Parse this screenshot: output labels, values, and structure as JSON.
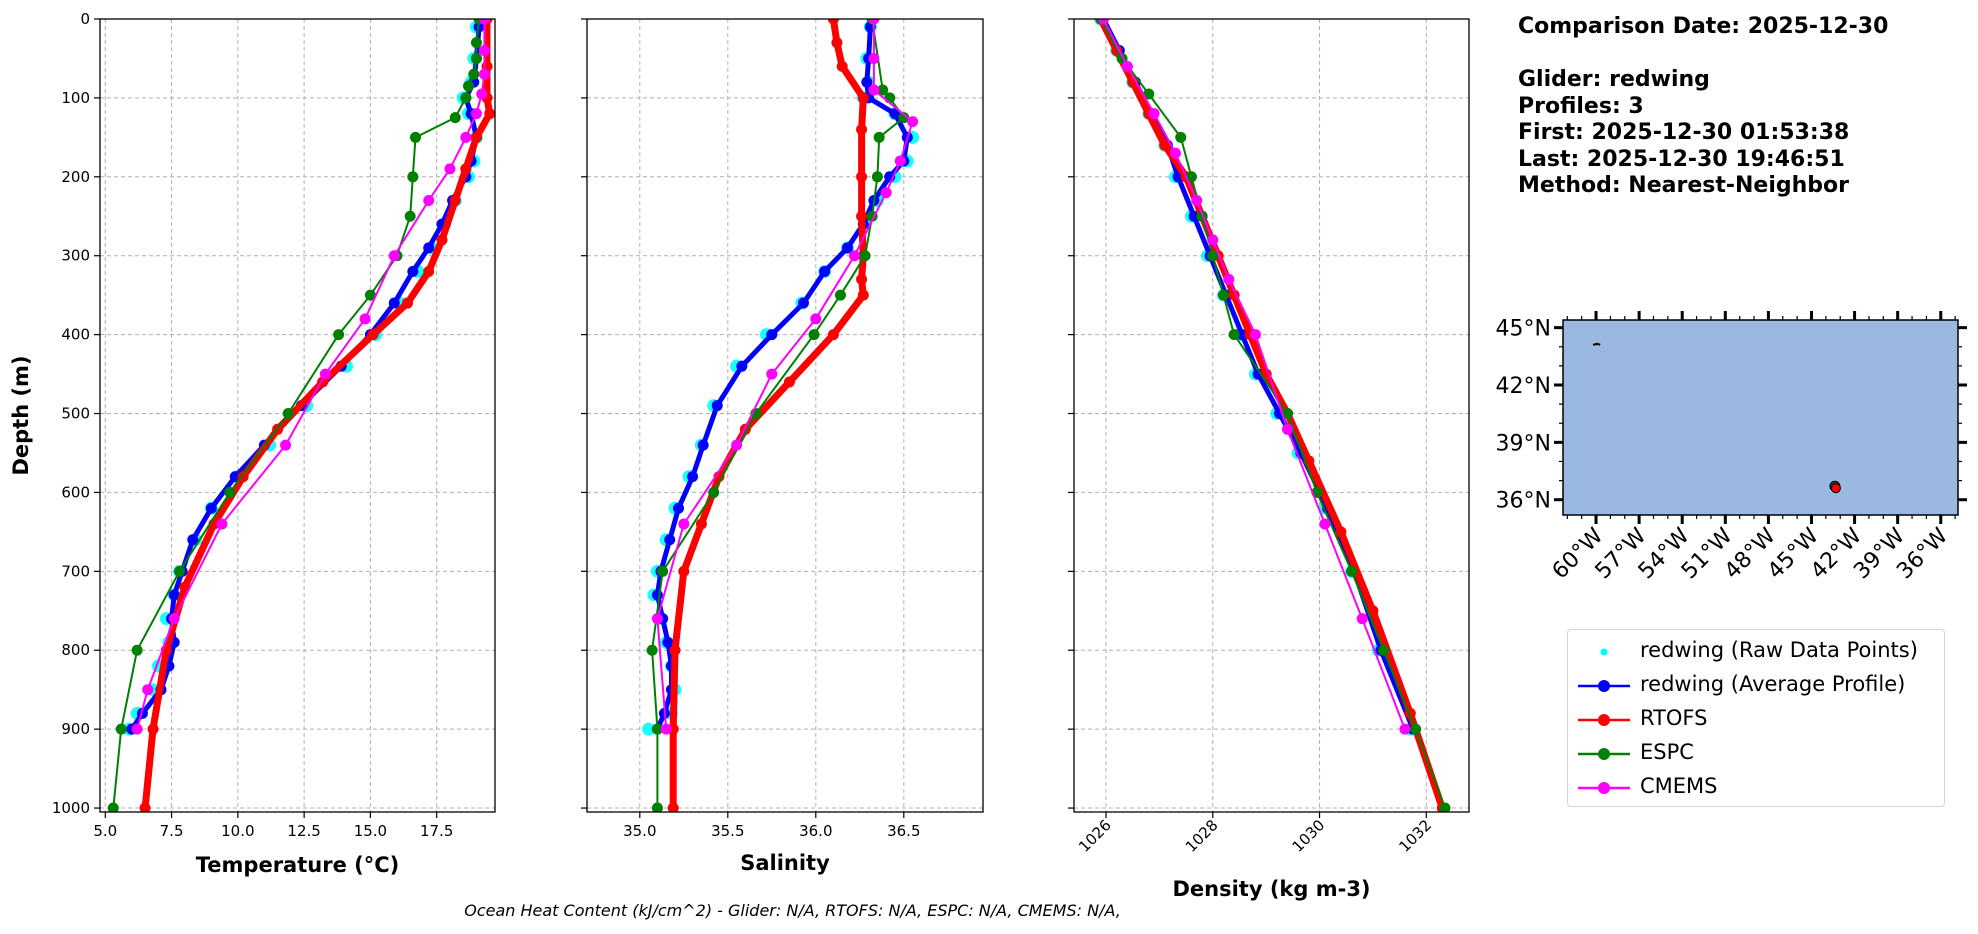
{
  "chart_data": [
    {
      "type": "line",
      "xlabel": "Temperature (°C)",
      "ylabel": "Depth (m)",
      "xlim": [
        4.8,
        19.7
      ],
      "ylim": [
        1005,
        0
      ],
      "xticks": [
        "5.0",
        "7.5",
        "10.0",
        "12.5",
        "15.0",
        "17.5"
      ],
      "yticks": [
        "0",
        "100",
        "200",
        "300",
        "400",
        "500",
        "600",
        "700",
        "800",
        "900",
        "1000"
      ],
      "grid": true,
      "series": [
        {
          "name": "redwing (Raw Data Points)",
          "color": "#00ffff",
          "style": "points",
          "x": [
            19.0,
            18.9,
            18.8,
            18.5,
            18.7,
            19.0,
            18.9,
            18.7,
            18.2,
            17.8,
            17.3,
            16.8,
            16.1,
            15.2,
            14.1,
            12.6,
            11.2,
            10.0,
            9.0,
            8.4,
            7.8,
            7.6,
            7.3,
            7.4,
            7.0,
            6.8,
            6.2,
            5.9
          ],
          "y": [
            10,
            50,
            80,
            100,
            120,
            150,
            180,
            200,
            230,
            260,
            290,
            320,
            360,
            400,
            440,
            490,
            540,
            580,
            620,
            660,
            700,
            730,
            760,
            790,
            820,
            850,
            880,
            900
          ]
        },
        {
          "name": "redwing (Average Profile)",
          "color": "#0000ff",
          "style": "line-markers",
          "x": [
            19.1,
            19.0,
            18.9,
            18.6,
            18.8,
            19.0,
            18.8,
            18.6,
            18.1,
            17.7,
            17.2,
            16.6,
            15.9,
            15.0,
            13.9,
            12.4,
            11.0,
            9.9,
            9.0,
            8.3,
            7.9,
            7.6,
            7.5,
            7.6,
            7.4,
            7.1,
            6.4,
            6.0
          ],
          "y": [
            10,
            50,
            80,
            100,
            120,
            150,
            180,
            200,
            230,
            260,
            290,
            320,
            360,
            400,
            440,
            490,
            540,
            580,
            620,
            660,
            700,
            730,
            760,
            790,
            820,
            850,
            880,
            900
          ]
        },
        {
          "name": "RTOFS",
          "color": "#ff0000",
          "style": "line-markers",
          "x": [
            19.4,
            19.4,
            19.4,
            19.5,
            19.0,
            18.6,
            18.2,
            17.7,
            17.2,
            16.4,
            15.1,
            13.2,
            11.5,
            10.2,
            9.1,
            8.0,
            7.3,
            6.8,
            6.5
          ],
          "y": [
            0,
            60,
            100,
            120,
            150,
            190,
            230,
            280,
            320,
            360,
            400,
            460,
            520,
            580,
            640,
            720,
            800,
            900,
            1000
          ]
        },
        {
          "name": "ESPC",
          "color": "#008000",
          "style": "line-markers",
          "x": [
            19.1,
            19.0,
            19.0,
            18.9,
            18.7,
            18.6,
            18.2,
            16.7,
            16.6,
            16.5,
            16.0,
            15.0,
            13.8,
            11.9,
            9.7,
            7.8,
            6.2,
            5.6,
            5.3
          ],
          "y": [
            0,
            30,
            50,
            70,
            85,
            100,
            125,
            150,
            200,
            250,
            300,
            350,
            400,
            500,
            600,
            700,
            800,
            900,
            1000
          ]
        },
        {
          "name": "CMEMS",
          "color": "#ff00ff",
          "style": "line-markers",
          "x": [
            19.3,
            19.3,
            19.3,
            19.2,
            19.0,
            18.6,
            18.0,
            17.2,
            15.9,
            14.8,
            13.3,
            11.8,
            9.4,
            7.6,
            6.6,
            6.2
          ],
          "y": [
            0,
            40,
            70,
            95,
            120,
            150,
            190,
            230,
            300,
            380,
            450,
            540,
            640,
            760,
            850,
            900
          ]
        }
      ]
    },
    {
      "type": "line",
      "xlabel": "Salinity",
      "ylabel": "",
      "xlim": [
        34.7,
        36.95
      ],
      "ylim": [
        1005,
        0
      ],
      "xticks": [
        "35.0",
        "35.5",
        "36.0",
        "36.5"
      ],
      "grid": true,
      "series": [
        {
          "name": "redwing (Raw Data Points)",
          "color": "#00ffff",
          "style": "points",
          "x": [
            36.31,
            36.29,
            36.3,
            36.27,
            36.45,
            36.55,
            36.52,
            36.45,
            36.35,
            36.28,
            36.18,
            36.05,
            35.92,
            35.72,
            35.55,
            35.42,
            35.35,
            35.28,
            35.2,
            35.15,
            35.1,
            35.08,
            35.12,
            35.15,
            35.18,
            35.2,
            35.18,
            35.05
          ],
          "y": [
            10,
            50,
            80,
            100,
            120,
            150,
            180,
            200,
            230,
            260,
            290,
            320,
            360,
            400,
            440,
            490,
            540,
            580,
            620,
            660,
            700,
            730,
            760,
            790,
            820,
            850,
            880,
            900
          ]
        },
        {
          "name": "redwing (Average Profile)",
          "color": "#0000ff",
          "style": "line-markers",
          "x": [
            36.31,
            36.3,
            36.29,
            36.3,
            36.45,
            36.52,
            36.5,
            36.42,
            36.33,
            36.27,
            36.18,
            36.05,
            35.93,
            35.75,
            35.58,
            35.44,
            35.36,
            35.3,
            35.22,
            35.17,
            35.12,
            35.1,
            35.13,
            35.16,
            35.18,
            35.18,
            35.14,
            35.1
          ],
          "y": [
            10,
            50,
            80,
            100,
            120,
            150,
            180,
            200,
            230,
            260,
            290,
            320,
            360,
            400,
            440,
            490,
            540,
            580,
            620,
            660,
            700,
            730,
            760,
            790,
            820,
            850,
            880,
            900
          ]
        },
        {
          "name": "RTOFS",
          "color": "#ff0000",
          "style": "line-markers",
          "x": [
            36.1,
            36.12,
            36.15,
            36.27,
            36.26,
            36.26,
            36.26,
            36.27,
            36.26,
            36.27,
            36.1,
            35.85,
            35.6,
            35.45,
            35.35,
            35.25,
            35.2,
            35.19,
            35.19
          ],
          "y": [
            0,
            30,
            60,
            100,
            140,
            200,
            250,
            300,
            330,
            350,
            400,
            460,
            520,
            580,
            640,
            700,
            800,
            900,
            1000
          ]
        },
        {
          "name": "ESPC",
          "color": "#008000",
          "style": "line-markers",
          "x": [
            36.32,
            36.38,
            36.42,
            36.5,
            36.36,
            36.35,
            36.32,
            36.28,
            36.14,
            35.99,
            35.66,
            35.42,
            35.13,
            35.07,
            35.1,
            35.1
          ],
          "y": [
            0,
            90,
            100,
            125,
            150,
            200,
            250,
            300,
            350,
            400,
            500,
            600,
            700,
            800,
            900,
            1000
          ]
        },
        {
          "name": "CMEMS",
          "color": "#ff00ff",
          "style": "line-markers",
          "x": [
            36.33,
            36.33,
            36.33,
            36.55,
            36.48,
            36.4,
            36.22,
            36.0,
            35.75,
            35.55,
            35.25,
            35.1,
            35.15
          ],
          "y": [
            0,
            50,
            90,
            130,
            180,
            220,
            300,
            380,
            450,
            540,
            640,
            760,
            900
          ]
        }
      ]
    },
    {
      "type": "line",
      "xlabel": "Density (kg m-3)",
      "ylabel": "",
      "xlim": [
        1025.4,
        1032.8
      ],
      "ylim": [
        1005,
        0
      ],
      "xticks": [
        "1026",
        "1028",
        "1030",
        "1032"
      ],
      "grid": true,
      "series": [
        {
          "name": "redwing (Raw Data Points)",
          "color": "#00ffff",
          "style": "points",
          "x": [
            1025.9,
            1026.2,
            1026.5,
            1026.8,
            1027.1,
            1027.3,
            1027.6,
            1027.9,
            1028.2,
            1028.5,
            1028.8,
            1029.2,
            1029.6,
            1030.1,
            1030.6,
            1031.1,
            1031.7
          ],
          "y": [
            0,
            40,
            80,
            120,
            160,
            200,
            250,
            300,
            350,
            400,
            450,
            500,
            550,
            620,
            700,
            800,
            900
          ]
        },
        {
          "name": "redwing (Average Profile)",
          "color": "#0000ff",
          "style": "line-markers",
          "x": [
            1025.95,
            1026.25,
            1026.55,
            1026.85,
            1027.15,
            1027.35,
            1027.65,
            1027.95,
            1028.25,
            1028.55,
            1028.85,
            1029.25,
            1029.65,
            1030.15,
            1030.65,
            1031.15,
            1031.75
          ],
          "y": [
            0,
            40,
            80,
            120,
            160,
            200,
            250,
            300,
            350,
            400,
            450,
            500,
            550,
            620,
            700,
            800,
            900
          ]
        },
        {
          "name": "RTOFS",
          "color": "#ff0000",
          "style": "line-markers",
          "x": [
            1025.9,
            1026.2,
            1026.5,
            1026.8,
            1027.1,
            1027.5,
            1027.8,
            1028.1,
            1028.4,
            1028.7,
            1029.0,
            1029.4,
            1029.8,
            1030.4,
            1031.0,
            1031.7,
            1032.3
          ],
          "y": [
            0,
            40,
            80,
            120,
            160,
            200,
            250,
            300,
            350,
            400,
            450,
            500,
            560,
            650,
            750,
            880,
            1000
          ]
        },
        {
          "name": "ESPC",
          "color": "#008000",
          "style": "line-markers",
          "x": [
            1025.9,
            1026.3,
            1026.8,
            1027.4,
            1027.6,
            1027.8,
            1028.0,
            1028.2,
            1028.4,
            1029.4,
            1029.95,
            1030.6,
            1031.2,
            1031.8,
            1032.35
          ],
          "y": [
            0,
            50,
            95,
            150,
            200,
            250,
            300,
            350,
            400,
            500,
            600,
            700,
            800,
            900,
            1000
          ]
        },
        {
          "name": "CMEMS",
          "color": "#ff00ff",
          "style": "line-markers",
          "x": [
            1025.95,
            1026.4,
            1026.9,
            1027.3,
            1027.7,
            1028.0,
            1028.3,
            1028.8,
            1029.4,
            1030.1,
            1030.8,
            1031.6
          ],
          "y": [
            0,
            60,
            120,
            170,
            230,
            280,
            330,
            400,
            520,
            640,
            760,
            900
          ]
        }
      ]
    }
  ],
  "info": {
    "comparison_date": "Comparison Date: 2025-12-30",
    "glider": "Glider: redwing",
    "profiles": "Profiles: 3",
    "first": "First: 2025-12-30 01:53:38",
    "last": "Last: 2025-12-30 19:46:51",
    "method": "Method: Nearest-Neighbor"
  },
  "map": {
    "lat_labels": [
      "45°N",
      "42°N",
      "39°N",
      "36°N"
    ],
    "lat_values": [
      45,
      42,
      39,
      36
    ],
    "lon_labels": [
      "60°W",
      "57°W",
      "54°W",
      "51°W",
      "48°W",
      "45°W",
      "42°W",
      "39°W",
      "36°W"
    ],
    "lon_values": [
      -60,
      -57,
      -54,
      -51,
      -48,
      -45,
      -42,
      -39,
      -36
    ],
    "lon_range": [
      -62.3,
      -34.8
    ],
    "lat_range": [
      35.2,
      45.4
    ],
    "ocean_color": "#9ab8e0",
    "glider_position": {
      "lon": -43.3,
      "lat": 36.6
    },
    "marker_color": "#ff0000"
  },
  "legend": [
    {
      "label": "redwing (Raw Data Points)",
      "color": "#00ffff",
      "kind": "point"
    },
    {
      "label": "redwing (Average Profile)",
      "color": "#0000ff",
      "kind": "line-marker"
    },
    {
      "label": "RTOFS",
      "color": "#ff0000",
      "kind": "line-marker"
    },
    {
      "label": "ESPC",
      "color": "#008000",
      "kind": "line-marker"
    },
    {
      "label": "CMEMS",
      "color": "#ff00ff",
      "kind": "line-marker"
    }
  ],
  "footer": "Ocean Heat Content (kJ/cm^2) - Glider: N/A,  RTOFS: N/A,  ESPC: N/A,  CMEMS: N/A,"
}
